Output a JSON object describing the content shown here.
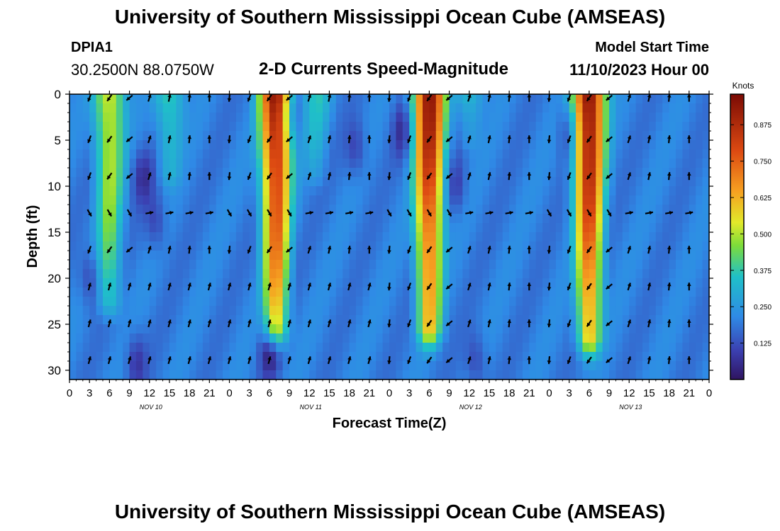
{
  "header": {
    "title": "University of Southern Mississippi Ocean Cube (AMSEAS)",
    "station_id": "DPIA1",
    "coordinates": "30.2500N  88.0750W",
    "chart_title": "2-D Currents Speed-Magnitude",
    "model_start_label": "Model Start Time",
    "model_start_value": "11/10/2023 Hour 00"
  },
  "footer": {
    "title": "University of Southern Mississippi Ocean Cube (AMSEAS)"
  },
  "chart_data": {
    "type": "heatmap",
    "title": "2-D Currents Speed-Magnitude",
    "xlabel": "Forecast Time(Z)",
    "ylabel": "Depth (ft)",
    "xlim": [
      0,
      96
    ],
    "ylim": [
      31,
      0
    ],
    "x_tick_labels": [
      "0",
      "3",
      "6",
      "9",
      "12",
      "15",
      "18",
      "21",
      "0",
      "3",
      "6",
      "9",
      "12",
      "15",
      "18",
      "21",
      "0",
      "3",
      "6",
      "9",
      "12",
      "15",
      "18",
      "21",
      "0",
      "3",
      "6",
      "9",
      "12",
      "15",
      "18",
      "21",
      "0"
    ],
    "day_labels": [
      "NOV 10",
      "NOV 11",
      "NOV 12",
      "NOV 13"
    ],
    "y_ticks": [
      0,
      5,
      10,
      15,
      20,
      25,
      30
    ],
    "colorbar": {
      "label": "Knots",
      "ticks": [
        "0.125",
        "0.250",
        "0.375",
        "0.500",
        "0.625",
        "0.750",
        "0.875"
      ],
      "range": [
        0,
        0.98
      ]
    },
    "speed_peaks": [
      {
        "hour": 6,
        "max_knots": 0.55,
        "bottom_depth_ft": 22
      },
      {
        "hour": 15,
        "max_knots": 0.4,
        "bottom_depth_ft": 8
      },
      {
        "hour": 31,
        "max_knots": 0.95,
        "bottom_depth_ft": 25
      },
      {
        "hour": 37,
        "max_knots": 0.35,
        "bottom_depth_ft": 8
      },
      {
        "hour": 54,
        "max_knots": 0.95,
        "bottom_depth_ft": 25
      },
      {
        "hour": 60,
        "max_knots": 0.35,
        "bottom_depth_ft": 4
      },
      {
        "hour": 78,
        "max_knots": 0.98,
        "bottom_depth_ft": 26
      }
    ],
    "vector_hours": [
      3,
      6,
      9,
      12,
      15,
      18,
      21,
      24,
      27,
      30,
      33,
      36,
      39,
      42,
      45,
      48,
      51,
      54,
      57,
      60,
      63,
      66,
      69,
      72,
      75,
      78,
      81,
      84,
      87,
      90,
      93
    ],
    "vector_depths_ft": [
      0,
      4.5,
      8.5,
      12.5,
      16.5,
      20.5,
      24.5,
      28.5
    ]
  }
}
